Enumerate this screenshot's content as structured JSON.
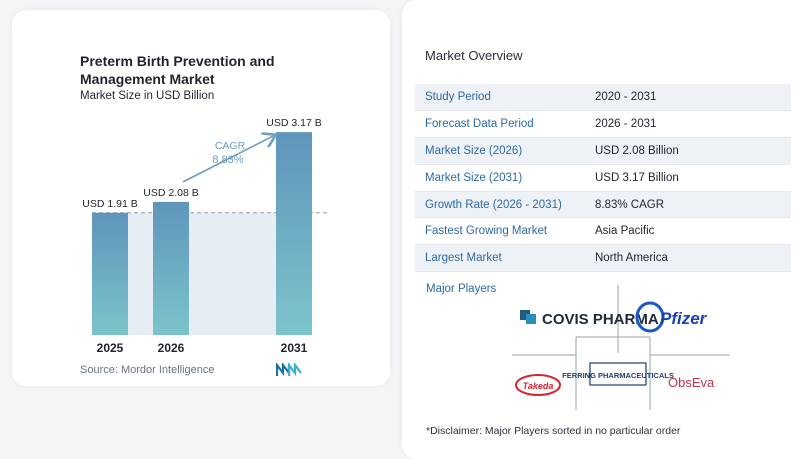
{
  "chart_data": {
    "type": "bar",
    "title": "Preterm Birth Prevention and Management Market",
    "subtitle": "Market Size in USD Billion",
    "categories": [
      "2025",
      "2026",
      "2031"
    ],
    "values": [
      1.91,
      2.08,
      3.17
    ],
    "data_labels": [
      "USD 1.91 B",
      "USD 2.08 B",
      "USD 3.17 B"
    ],
    "annotation": {
      "label": "CAGR",
      "value": "8.83%"
    },
    "ylim": [
      0,
      3.5
    ],
    "grid": false,
    "legend": "none",
    "colors": {
      "bar_top": "#5f95bb",
      "bar_bottom": "#7cc4cb",
      "band": "#dce6f0",
      "arrow": "#6b9cc1",
      "dashed": "#8c9bb0"
    }
  },
  "source": "Source:  Mordor Intelligence",
  "source_logo_icon": "mordor-intelligence-logo",
  "overview": {
    "title": "Market Overview",
    "rows": [
      {
        "key": "Study Period",
        "value": "2020 - 2031"
      },
      {
        "key": "Forecast Data Period",
        "value": "2026 - 2031"
      },
      {
        "key": "Market Size (2026)",
        "value": "USD 2.08 Billion"
      },
      {
        "key": "Market Size (2031)",
        "value": "USD 3.17 Billion"
      },
      {
        "key": "Growth Rate (2026 - 2031)",
        "value": "8.83% CAGR"
      },
      {
        "key": "Fastest Growing Market",
        "value": "Asia Pacific"
      },
      {
        "key": "Largest Market",
        "value": "North America"
      }
    ],
    "players_label": "Major Players",
    "players": [
      "COVIS PHARMA",
      "Pfizer",
      "FERRING PHARMACEUTICALS",
      "Takeda",
      "ObsEva"
    ],
    "disclaimer": "*Disclaimer: Major Players sorted in no particular order"
  }
}
